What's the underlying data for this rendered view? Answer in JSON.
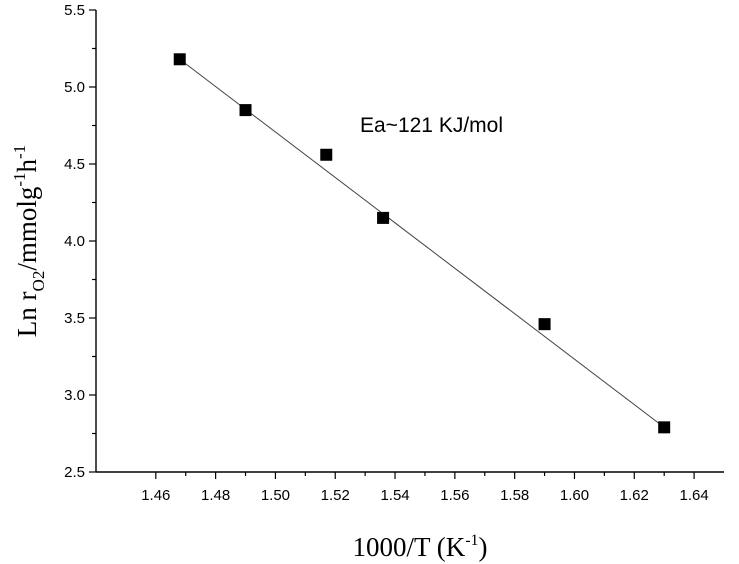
{
  "chart_data": {
    "type": "scatter",
    "xlabel": {
      "main": "1000/T (K",
      "sup": "-1",
      "close": ")"
    },
    "ylabel": {
      "pre": "Ln r",
      "sub": "O2",
      "unit": "/mmolg",
      "sup1": "-1",
      "h": "h",
      "sup2": "-1"
    },
    "xlim": [
      1.44,
      1.65
    ],
    "ylim": [
      2.5,
      5.5
    ],
    "xticks": [
      1.46,
      1.48,
      1.5,
      1.52,
      1.54,
      1.56,
      1.58,
      1.6,
      1.62,
      1.64
    ],
    "xtick_labels": [
      "1.46",
      "1.48",
      "1.50",
      "1.52",
      "1.54",
      "1.56",
      "1.58",
      "1.60",
      "1.62",
      "1.64"
    ],
    "yticks": [
      2.5,
      3.0,
      3.5,
      4.0,
      4.5,
      5.0,
      5.5
    ],
    "ytick_labels": [
      "2.5",
      "3.0",
      "3.5",
      "4.0",
      "4.5",
      "5.0",
      "5.5"
    ],
    "points": [
      {
        "x": 1.468,
        "y": 5.18
      },
      {
        "x": 1.49,
        "y": 4.85
      },
      {
        "x": 1.517,
        "y": 4.56
      },
      {
        "x": 1.536,
        "y": 4.15
      },
      {
        "x": 1.59,
        "y": 3.46
      },
      {
        "x": 1.63,
        "y": 2.79
      }
    ],
    "fit_line": {
      "x": [
        1.468,
        1.63
      ],
      "y": [
        5.18,
        2.79
      ]
    },
    "annotation": "Ea~121 KJ/mol",
    "grid": false,
    "legend": "none"
  }
}
